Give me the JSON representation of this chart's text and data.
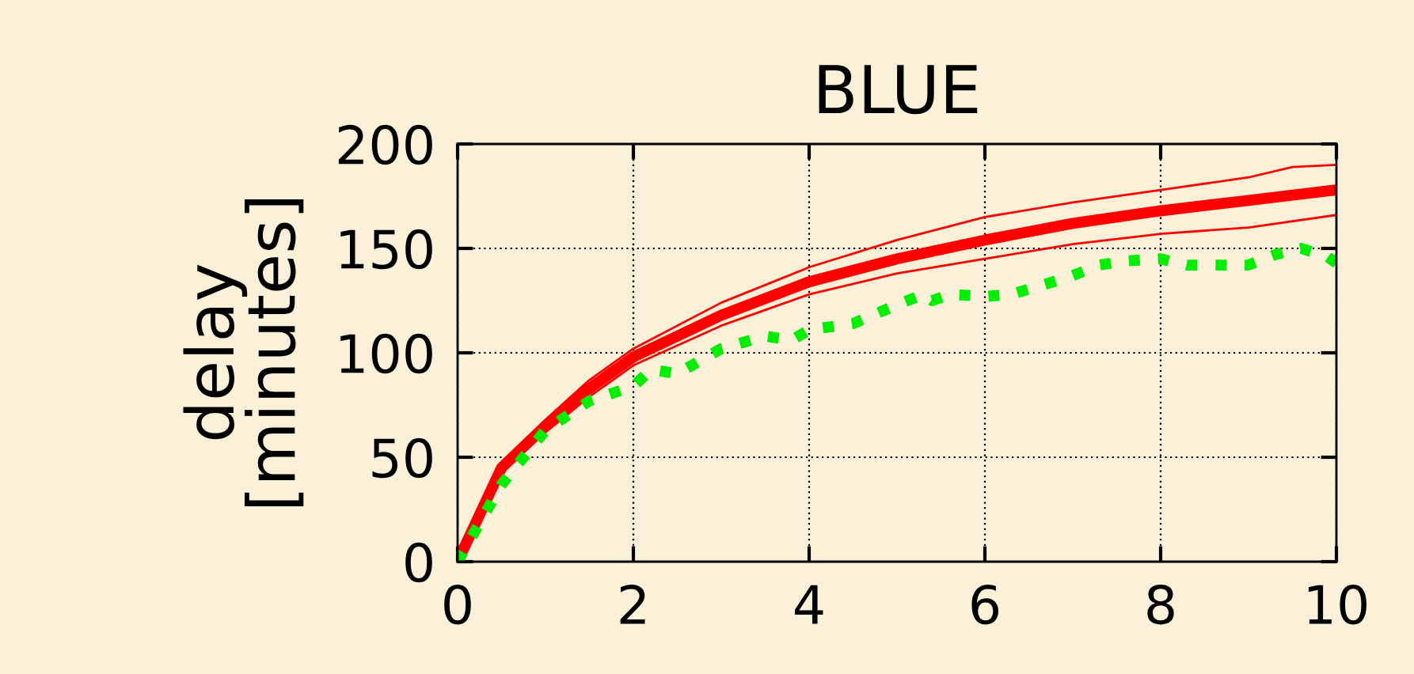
{
  "chart_data": {
    "type": "line",
    "title": "BLUE",
    "ylabel": "delay\n[minutes]",
    "xlim": [
      0,
      10
    ],
    "ylim": [
      0,
      200
    ],
    "xticks": [
      0,
      2,
      4,
      6,
      8,
      10
    ],
    "yticks": [
      0,
      50,
      100,
      150,
      200
    ],
    "grid": true,
    "marker": "none",
    "series": [
      {
        "color": "#ff0000",
        "line_style": "solid",
        "x": [
          0,
          0.5,
          1,
          1.5,
          2,
          3,
          4,
          5,
          6,
          7,
          8,
          9,
          9.5,
          10
        ],
        "values": [
          0,
          47,
          68,
          87,
          102,
          124,
          141,
          154,
          165,
          172,
          178,
          184,
          189,
          190
        ]
      },
      {
        "color": "#ff0000",
        "line_style": "solid",
        "x": [
          0,
          0.5,
          1,
          1.5,
          2,
          3,
          4,
          5,
          6,
          7,
          8,
          9,
          10
        ],
        "values": [
          0,
          43,
          62,
          79,
          94,
          113,
          128,
          138,
          145,
          152,
          157,
          160,
          166
        ]
      },
      {
        "color": "#ff0000",
        "line_style": "solid",
        "x": [
          0,
          0.5,
          1,
          1.5,
          2,
          3,
          4,
          5,
          6,
          7,
          8,
          9,
          10
        ],
        "values": [
          0,
          45,
          65,
          83,
          98,
          118,
          134,
          145,
          154,
          162,
          168,
          173,
          178
        ]
      },
      {
        "color": "#00ee00",
        "line_style": "dotted",
        "x": [
          0,
          0.5,
          1,
          1.5,
          2,
          2.2,
          2.5,
          3,
          3.5,
          3.8,
          4,
          4.5,
          5,
          5.3,
          5.4,
          5.6,
          6,
          6.3,
          6.7,
          7,
          7.3,
          7.6,
          8,
          8.3,
          8.7,
          9,
          9.3,
          9.6,
          9.9,
          10
        ],
        "values": [
          0,
          37,
          63,
          77,
          84,
          92,
          90,
          102,
          108,
          106,
          111,
          114,
          123,
          128,
          125,
          128,
          127,
          128,
          133,
          137,
          142,
          144,
          145,
          142,
          142,
          142,
          147,
          150,
          146,
          143
        ]
      }
    ]
  }
}
